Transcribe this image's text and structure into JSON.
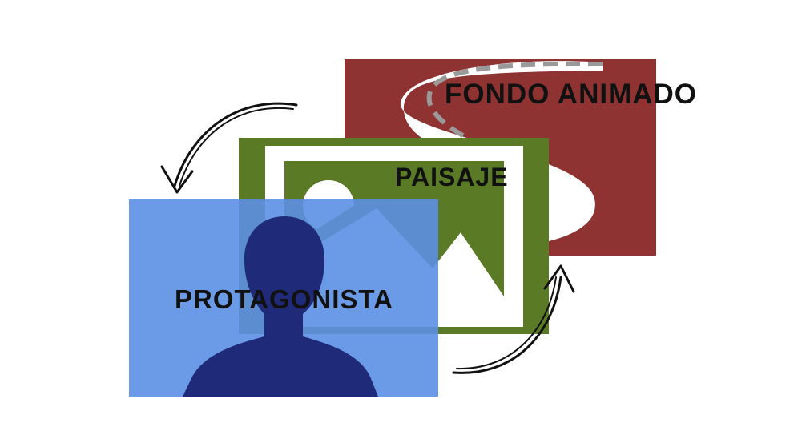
{
  "layers": {
    "fondo": {
      "label": "FONDO ANIMADO",
      "color": "#8f3232"
    },
    "paisaje": {
      "label": "PAISAJE",
      "color": "#5b7a25"
    },
    "protagonista": {
      "label": "PROTAGONISTA",
      "color": "#5b8fe3"
    }
  },
  "icons": {
    "road": "road-icon",
    "landscape": "landscape-image-icon",
    "person": "person-silhouette-icon",
    "cycle_arrows": "curved-arrow-icon"
  },
  "colors": {
    "road": "#ffffff",
    "road_dash": "#9a9a9a",
    "silhouette": "#1f2a78",
    "arrow": "#111111"
  }
}
